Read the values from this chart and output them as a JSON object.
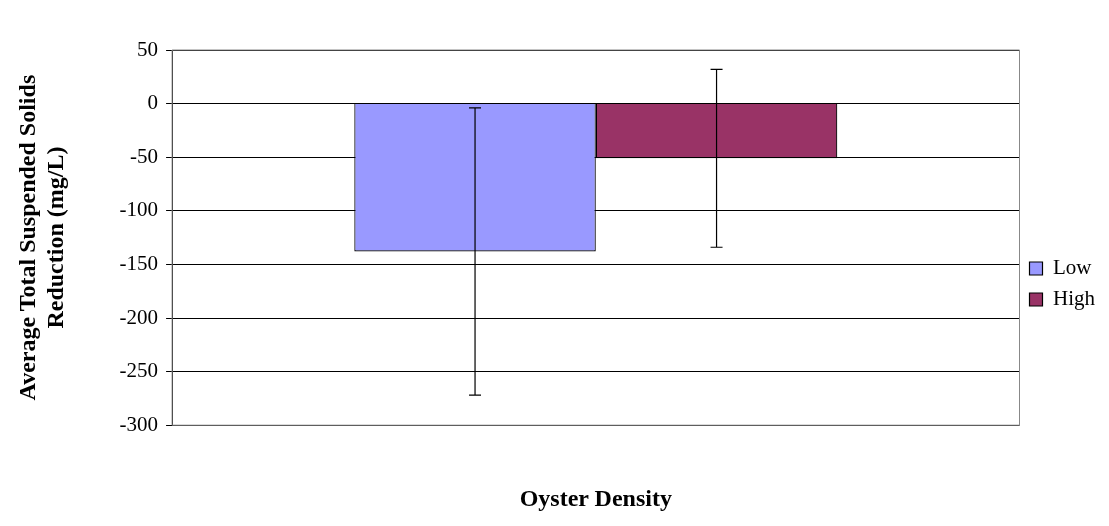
{
  "chart_data": {
    "type": "bar",
    "xlabel": "Oyster Density",
    "ylabel": "Average Total Suspended Solids Reduction (mg/L)",
    "categories": [
      null
    ],
    "series": [
      {
        "name": "Low",
        "color": "#9999ff",
        "values": [
          -138
        ],
        "errors": [
          134
        ]
      },
      {
        "name": "High",
        "color": "#993366",
        "values": [
          -51
        ],
        "errors": [
          83
        ]
      }
    ],
    "ylim": [
      -300,
      50
    ],
    "yticks": [
      -300,
      -250,
      -200,
      -150,
      -100,
      -50,
      0,
      50
    ],
    "grid": "y",
    "legend": "right"
  }
}
